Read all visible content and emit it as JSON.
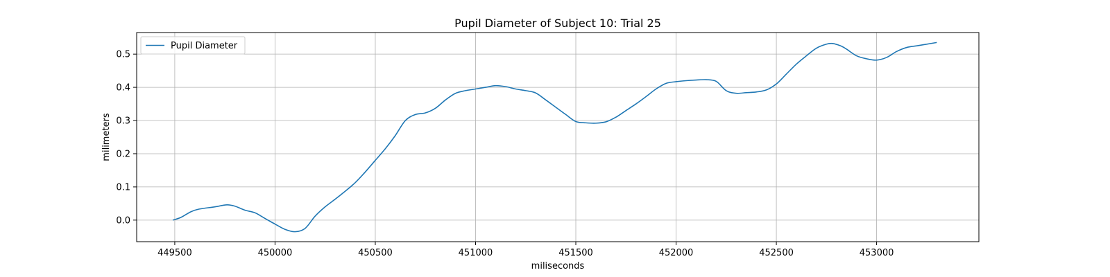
{
  "chart_data": {
    "type": "line",
    "title": "Pupil Diameter of Subject 10: Trial 25",
    "xlabel": "miliseconds",
    "ylabel": "milimeters",
    "xlim": [
      449310,
      453510
    ],
    "ylim": [
      -0.065,
      0.565
    ],
    "xticks": [
      449500,
      450000,
      450500,
      451000,
      451500,
      452000,
      452500,
      453000
    ],
    "yticks": [
      0.0,
      0.1,
      0.2,
      0.3,
      0.4,
      0.5
    ],
    "xtick_labels": [
      "449500",
      "450000",
      "450500",
      "451000",
      "451500",
      "452000",
      "452500",
      "453000"
    ],
    "ytick_labels": [
      "0.0",
      "0.1",
      "0.2",
      "0.3",
      "0.4",
      "0.5"
    ],
    "grid": true,
    "legend_position": "upper-left",
    "series": [
      {
        "name": "Pupil Diameter",
        "color": "#1f77b4",
        "x": [
          449490,
          449530,
          449580,
          449620,
          449700,
          449760,
          449800,
          449850,
          449900,
          449950,
          450000,
          450050,
          450100,
          450150,
          450200,
          450250,
          450300,
          450350,
          450400,
          450450,
          450500,
          450550,
          450600,
          450650,
          450700,
          450750,
          450800,
          450850,
          450900,
          450950,
          451000,
          451050,
          451100,
          451150,
          451200,
          451250,
          451300,
          451350,
          451400,
          451450,
          451500,
          451550,
          451600,
          451650,
          451700,
          451750,
          451800,
          451850,
          451900,
          451950,
          452000,
          452050,
          452100,
          452150,
          452200,
          452250,
          452300,
          452350,
          452400,
          452450,
          452500,
          452550,
          452600,
          452650,
          452700,
          452750,
          452780,
          452820,
          452850,
          452900,
          452950,
          453000,
          453050,
          453100,
          453150,
          453200,
          453250,
          453300
        ],
        "y": [
          0.0,
          0.008,
          0.025,
          0.033,
          0.04,
          0.046,
          0.042,
          0.03,
          0.022,
          0.005,
          -0.012,
          -0.028,
          -0.035,
          -0.025,
          0.012,
          0.04,
          0.063,
          0.087,
          0.113,
          0.145,
          0.18,
          0.215,
          0.255,
          0.3,
          0.318,
          0.323,
          0.337,
          0.362,
          0.382,
          0.39,
          0.395,
          0.4,
          0.405,
          0.402,
          0.395,
          0.39,
          0.383,
          0.362,
          0.34,
          0.318,
          0.297,
          0.293,
          0.292,
          0.296,
          0.31,
          0.33,
          0.35,
          0.372,
          0.395,
          0.412,
          0.417,
          0.42,
          0.422,
          0.423,
          0.418,
          0.39,
          0.382,
          0.384,
          0.386,
          0.392,
          0.41,
          0.44,
          0.47,
          0.495,
          0.518,
          0.53,
          0.532,
          0.525,
          0.515,
          0.495,
          0.486,
          0.482,
          0.49,
          0.508,
          0.52,
          0.525,
          0.53,
          0.535
        ]
      }
    ]
  }
}
